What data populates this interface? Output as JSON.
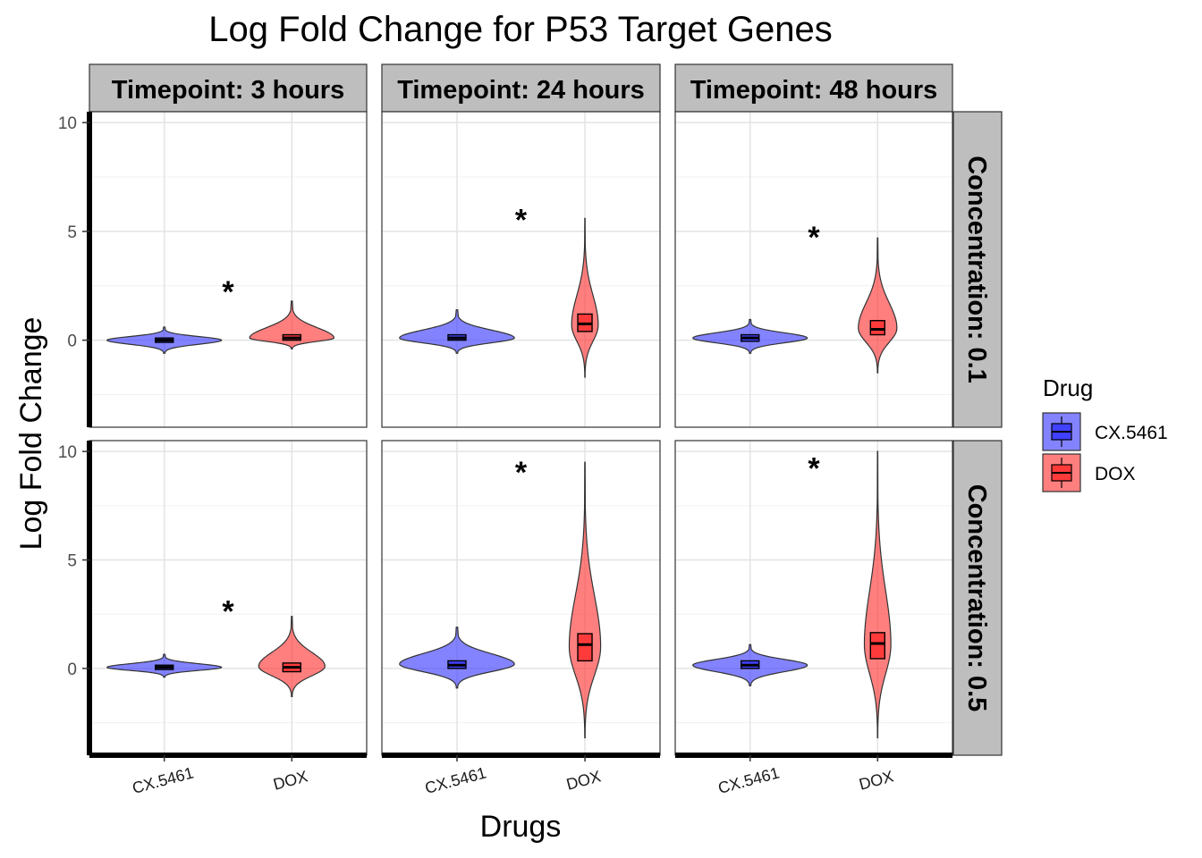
{
  "chart_data": {
    "type": "violin",
    "title": "Log Fold Change for P53 Target Genes",
    "xlabel": "Drugs",
    "ylabel": "Log Fold Change",
    "categories": [
      "CX.5461",
      "DOX"
    ],
    "y_ticks": [
      "0",
      "5",
      "10"
    ],
    "ylim": [
      -4,
      10.5
    ],
    "grid": true,
    "legend": {
      "title": "Drug",
      "position": "right",
      "items": [
        {
          "label": "CX.5461",
          "color": "#4040ff"
        },
        {
          "label": "DOX",
          "color": "#ff3a3a"
        }
      ]
    },
    "col_strips": [
      "Timepoint: 3 hours",
      "Timepoint: 24 hours",
      "Timepoint: 48 hours"
    ],
    "row_strips": [
      "Concentration: 0.1",
      "Concentration: 0.5"
    ],
    "significance_marker": "*",
    "panels": [
      {
        "row": 0,
        "col": 0,
        "star_y": 2.5,
        "violins": [
          {
            "drug": "CX.5461",
            "min": -0.6,
            "max": 0.6,
            "q1": -0.1,
            "median": 0.0,
            "q3": 0.1,
            "width": 0.95,
            "mode": 0.0
          },
          {
            "drug": "DOX",
            "min": -0.4,
            "max": 1.8,
            "q1": 0.0,
            "median": 0.1,
            "q3": 0.25,
            "width": 0.7,
            "mode": 0.1
          }
        ]
      },
      {
        "row": 0,
        "col": 1,
        "star_y": 5.8,
        "violins": [
          {
            "drug": "CX.5461",
            "min": -0.6,
            "max": 1.4,
            "q1": 0.0,
            "median": 0.1,
            "q3": 0.25,
            "width": 0.95,
            "mode": 0.1
          },
          {
            "drug": "DOX",
            "min": -1.7,
            "max": 5.6,
            "q1": 0.4,
            "median": 0.75,
            "q3": 1.2,
            "width": 0.22,
            "mode": 0.7
          }
        ]
      },
      {
        "row": 0,
        "col": 2,
        "star_y": 5.0,
        "violins": [
          {
            "drug": "CX.5461",
            "min": -0.6,
            "max": 0.95,
            "q1": -0.05,
            "median": 0.1,
            "q3": 0.25,
            "width": 0.95,
            "mode": 0.1
          },
          {
            "drug": "DOX",
            "min": -1.5,
            "max": 4.7,
            "q1": 0.25,
            "median": 0.5,
            "q3": 0.9,
            "width": 0.32,
            "mode": 0.55
          }
        ]
      },
      {
        "row": 1,
        "col": 0,
        "star_y": 2.9,
        "violins": [
          {
            "drug": "CX.5461",
            "min": -0.4,
            "max": 0.65,
            "q1": -0.05,
            "median": 0.05,
            "q3": 0.15,
            "width": 0.95,
            "mode": 0.05
          },
          {
            "drug": "DOX",
            "min": -1.3,
            "max": 2.4,
            "q1": -0.15,
            "median": 0.05,
            "q3": 0.25,
            "width": 0.55,
            "mode": 0.1
          }
        ]
      },
      {
        "row": 1,
        "col": 1,
        "star_y": 9.3,
        "violins": [
          {
            "drug": "CX.5461",
            "min": -0.9,
            "max": 1.9,
            "q1": 0.0,
            "median": 0.15,
            "q3": 0.35,
            "width": 0.95,
            "mode": 0.2
          },
          {
            "drug": "DOX",
            "min": -3.2,
            "max": 9.5,
            "q1": 0.35,
            "median": 1.1,
            "q3": 1.6,
            "width": 0.26,
            "mode": 1.0
          }
        ]
      },
      {
        "row": 1,
        "col": 2,
        "star_y": 9.5,
        "violins": [
          {
            "drug": "CX.5461",
            "min": -0.8,
            "max": 1.1,
            "q1": 0.0,
            "median": 0.15,
            "q3": 0.35,
            "width": 0.95,
            "mode": 0.15
          },
          {
            "drug": "DOX",
            "min": -3.2,
            "max": 10.0,
            "q1": 0.45,
            "median": 1.15,
            "q3": 1.65,
            "width": 0.22,
            "mode": 1.1
          }
        ]
      }
    ]
  }
}
